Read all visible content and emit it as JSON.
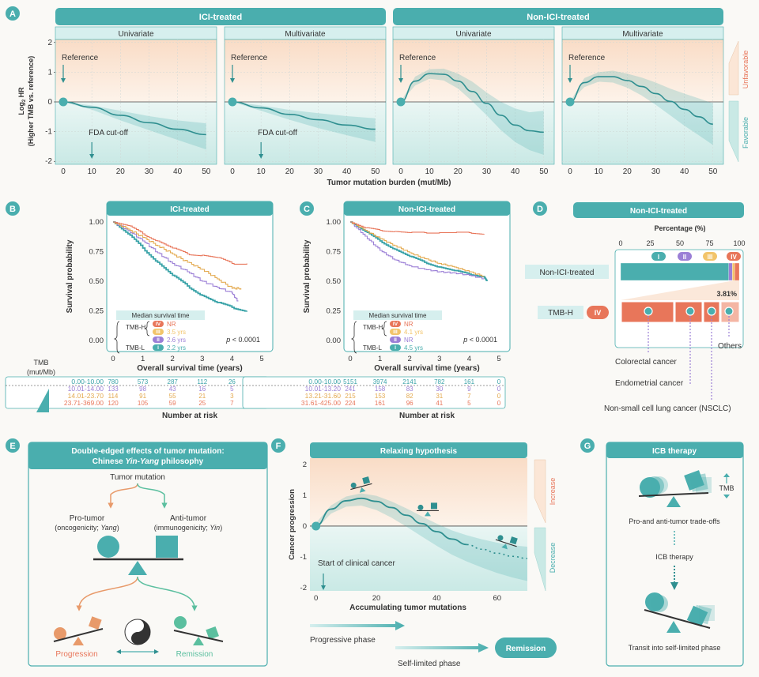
{
  "colors": {
    "teal": "#4aaeae",
    "teal_dark": "#2f8f90",
    "teal_light": "#bfe5e3",
    "header_bg": "#d6efee",
    "orange": "#e8765a",
    "orange_bg": "#fbe6d6",
    "yellow": "#f2c46a",
    "purple": "#9b7fd6",
    "bg": "#faf9f6"
  },
  "panels": {
    "a": "A",
    "b": "B",
    "c": "C",
    "d": "D",
    "e": "E",
    "f": "F",
    "g": "G"
  },
  "panel_a": {
    "group_ici": "ICI-treated",
    "group_non_ici": "Non-ICI-treated",
    "subtitles": [
      "Univariate",
      "Multivariate",
      "Univariate",
      "Multivariate"
    ],
    "ylabel_line1": "Log",
    "ylabel_sub": "2",
    "ylabel_line2": " HR",
    "ylabel_line3": "(Higher TMB vs. reference)",
    "xlabel": "Tumor mutation burden (mut/Mb)",
    "reference_label": "Reference",
    "fda_label": "FDA cut-off",
    "unfavorable": "Unfavorable",
    "favorable": "Favorable",
    "yticks": [
      "2",
      "1",
      "0",
      "-1",
      "-2"
    ],
    "xticks": [
      "0",
      "10",
      "20",
      "30",
      "40",
      "50"
    ]
  },
  "chart_data": [
    {
      "type": "line",
      "title": "ICI-treated, Univariate",
      "xlabel": "Tumor mutation burden (mut/Mb)",
      "ylabel": "Log2 HR (Higher TMB vs. reference)",
      "xlim": [
        0,
        52
      ],
      "ylim": [
        -2.1,
        2.1
      ],
      "x": [
        0,
        10,
        20,
        30,
        40,
        50
      ],
      "y": [
        0,
        -0.18,
        -0.45,
        -0.7,
        -0.92,
        -1.1
      ],
      "ci_low": [
        0,
        -0.26,
        -0.62,
        -0.95,
        -1.28,
        -1.6
      ],
      "ci_high": [
        0,
        -0.12,
        -0.3,
        -0.48,
        -0.62,
        -0.72
      ]
    },
    {
      "type": "line",
      "title": "ICI-treated, Multivariate",
      "xlim": [
        0,
        52
      ],
      "ylim": [
        -2.1,
        2.1
      ],
      "x": [
        0,
        10,
        20,
        30,
        40,
        50
      ],
      "y": [
        0,
        -0.2,
        -0.42,
        -0.6,
        -0.78,
        -0.92
      ],
      "ci_low": [
        0,
        -0.3,
        -0.6,
        -0.88,
        -1.12,
        -1.35
      ],
      "ci_high": [
        0,
        -0.12,
        -0.27,
        -0.38,
        -0.48,
        -0.55
      ]
    },
    {
      "type": "line",
      "title": "Non-ICI-treated, Univariate",
      "xlim": [
        0,
        52
      ],
      "ylim": [
        -2.1,
        2.1
      ],
      "x": [
        0,
        5,
        10,
        15,
        20,
        25,
        30,
        35,
        40,
        45,
        50
      ],
      "y": [
        0,
        0.7,
        0.95,
        0.93,
        0.7,
        0.35,
        -0.05,
        -0.45,
        -0.78,
        -0.97,
        -1.02
      ],
      "ci_low": [
        0,
        0.55,
        0.78,
        0.72,
        0.45,
        0.02,
        -0.45,
        -0.95,
        -1.35,
        -1.62,
        -1.78
      ],
      "ci_high": [
        0,
        0.85,
        1.1,
        1.12,
        0.95,
        0.68,
        0.32,
        0.0,
        -0.22,
        -0.35,
        -0.3
      ]
    },
    {
      "type": "line",
      "title": "Non-ICI-treated, Multivariate",
      "xlim": [
        0,
        52
      ],
      "ylim": [
        -2.1,
        2.1
      ],
      "x": [
        0,
        5,
        10,
        15,
        20,
        25,
        30,
        35,
        40,
        45,
        50
      ],
      "y": [
        0,
        0.65,
        0.85,
        0.85,
        0.72,
        0.52,
        0.28,
        0.02,
        -0.25,
        -0.5,
        -0.75
      ],
      "ci_low": [
        0,
        0.5,
        0.68,
        0.65,
        0.48,
        0.22,
        -0.1,
        -0.45,
        -0.8,
        -1.12,
        -1.45
      ],
      "ci_high": [
        0,
        0.8,
        1.0,
        1.05,
        0.95,
        0.82,
        0.65,
        0.45,
        0.28,
        0.12,
        -0.05
      ]
    },
    {
      "type": "line",
      "title": "ICI-treated",
      "xlabel": "Overall survival time (years)",
      "ylabel": "Survival probability",
      "xlim": [
        0,
        5
      ],
      "ylim": [
        0,
        1
      ],
      "series": [
        {
          "name": "0.00-10.00",
          "x": [
            0,
            0.5,
            1,
            1.5,
            2,
            2.5,
            3,
            3.5,
            4,
            4.5
          ],
          "y": [
            1,
            0.9,
            0.78,
            0.66,
            0.55,
            0.46,
            0.38,
            0.32,
            0.28,
            0.25
          ]
        },
        {
          "name": "10.01-14.00",
          "x": [
            0,
            0.5,
            1,
            1.5,
            2,
            2.5,
            3,
            3.5,
            4,
            4.2
          ],
          "y": [
            1,
            0.93,
            0.84,
            0.74,
            0.65,
            0.58,
            0.5,
            0.45,
            0.4,
            0.33
          ]
        },
        {
          "name": "14.01-23.70",
          "x": [
            0,
            0.5,
            1,
            1.5,
            2,
            2.5,
            3,
            3.5,
            4,
            4.3
          ],
          "y": [
            1,
            0.94,
            0.87,
            0.8,
            0.73,
            0.66,
            0.6,
            0.52,
            0.44,
            0.44
          ]
        },
        {
          "name": "23.71-369.00",
          "x": [
            0,
            0.5,
            1,
            1.5,
            2,
            2.5,
            3,
            3.5,
            4,
            4.5
          ],
          "y": [
            1,
            0.97,
            0.9,
            0.84,
            0.78,
            0.73,
            0.72,
            0.7,
            0.65,
            0.65
          ]
        }
      ]
    },
    {
      "type": "line",
      "title": "Non-ICI-treated",
      "xlabel": "Overall survival time (years)",
      "ylabel": "Survival probability",
      "xlim": [
        0,
        5
      ],
      "ylim": [
        0,
        1
      ],
      "series": [
        {
          "name": "0.00-10.00",
          "x": [
            0,
            0.5,
            1,
            1.5,
            2,
            2.5,
            3,
            3.5,
            4,
            4.5,
            4.6
          ],
          "y": [
            1,
            0.92,
            0.84,
            0.77,
            0.71,
            0.66,
            0.62,
            0.59,
            0.56,
            0.54,
            0.5
          ]
        },
        {
          "name": "10.01-13.20",
          "x": [
            0,
            0.5,
            1,
            1.5,
            2,
            2.5,
            3,
            3.5,
            4,
            4.5
          ],
          "y": [
            1,
            0.88,
            0.76,
            0.68,
            0.63,
            0.6,
            0.58,
            0.57,
            0.55,
            0.52
          ]
        },
        {
          "name": "13.21-31.60",
          "x": [
            0,
            0.5,
            1,
            1.5,
            2,
            2.5,
            3,
            3.5,
            4,
            4.5
          ],
          "y": [
            1,
            0.93,
            0.86,
            0.8,
            0.74,
            0.69,
            0.65,
            0.62,
            0.58,
            0.54
          ]
        },
        {
          "name": "31.61-425.00",
          "x": [
            0,
            0.5,
            1,
            1.5,
            2,
            2.5,
            3,
            3.5,
            4,
            4.5
          ],
          "y": [
            1,
            0.95,
            0.93,
            0.92,
            0.91,
            0.91,
            0.91,
            0.91,
            0.91,
            0.9
          ]
        }
      ]
    },
    {
      "type": "bar",
      "title": "Non-ICI-treated",
      "xlabel": "Percentage (%)",
      "categories": [
        "I",
        "II",
        "III",
        "IV"
      ],
      "values": [
        91.1,
        3.1,
        2.0,
        3.81
      ],
      "annotation": "3.81%"
    },
    {
      "type": "line",
      "title": "Relaxing hypothesis",
      "xlabel": "Accumulating tumor mutations",
      "ylabel": "Cancer progression",
      "xlim": [
        -2,
        70
      ],
      "ylim": [
        -2.1,
        2.2
      ],
      "x": [
        0,
        5,
        10,
        15,
        20,
        25,
        30,
        35,
        40,
        45,
        50,
        55,
        60,
        65,
        70
      ],
      "y": [
        0,
        0.55,
        0.82,
        0.9,
        0.8,
        0.6,
        0.35,
        0.08,
        -0.18,
        -0.42,
        -0.6,
        -0.75,
        -0.88,
        -0.98,
        -1.05
      ]
    }
  ],
  "panel_b": {
    "title": "ICI-treated",
    "ylabel": "Survival probability",
    "xlabel": "Overall survival time (years)",
    "yticks": [
      "1.00",
      "0.75",
      "0.50",
      "0.25",
      "0.00"
    ],
    "xticks": [
      "0",
      "1",
      "2",
      "3",
      "4",
      "5"
    ],
    "median_title": "Median survival time",
    "tmbh": "TMB-H",
    "tmbl": "TMB-L",
    "medians": [
      {
        "stage": "IV",
        "value": "NR"
      },
      {
        "stage": "III",
        "value": "3.5 yrs"
      },
      {
        "stage": "II",
        "value": "2.6 yrs"
      },
      {
        "stage": "I",
        "value": "2.2 yrs"
      }
    ],
    "pvalue_prefix": "p",
    "pvalue": " < 0.0001",
    "risk_title": "Number at risk",
    "risk_rows": [
      {
        "label": "0.00-10.00",
        "values": [
          "780",
          "573",
          "287",
          "112",
          "26",
          "0"
        ]
      },
      {
        "label": "10.01-14.00",
        "values": [
          "133",
          "98",
          "43",
          "16",
          "5",
          "0"
        ]
      },
      {
        "label": "14.01-23.70",
        "values": [
          "114",
          "91",
          "55",
          "21",
          "3",
          "0"
        ]
      },
      {
        "label": "23.71-369.00",
        "values": [
          "120",
          "105",
          "59",
          "25",
          "7",
          "0"
        ]
      }
    ]
  },
  "panel_c": {
    "title": "Non-ICI-treated",
    "ylabel": "Survival probability",
    "xlabel": "Overall survival time (years)",
    "yticks": [
      "1.00",
      "0.75",
      "0.50",
      "0.25",
      "0.00"
    ],
    "xticks": [
      "0",
      "1",
      "2",
      "3",
      "4",
      "5"
    ],
    "median_title": "Median survival time",
    "tmbh": "TMB-H",
    "tmbl": "TMB-L",
    "medians": [
      {
        "stage": "IV",
        "value": "NR"
      },
      {
        "stage": "III",
        "value": "4.1 yrs"
      },
      {
        "stage": "II",
        "value": "NR"
      },
      {
        "stage": "I",
        "value": "4.5 yrs"
      }
    ],
    "pvalue_prefix": "p",
    "pvalue": " < 0.0001",
    "risk_title": "Number at risk",
    "risk_rows": [
      {
        "label": "0.00-10.00",
        "values": [
          "5151",
          "3974",
          "2141",
          "782",
          "161",
          "0"
        ]
      },
      {
        "label": "10.01-13.20",
        "values": [
          "241",
          "158",
          "83",
          "30",
          "9",
          "0"
        ]
      },
      {
        "label": "13.21-31.60",
        "values": [
          "215",
          "153",
          "82",
          "31",
          "7",
          "0"
        ]
      },
      {
        "label": "31.61-425.00",
        "values": [
          "224",
          "161",
          "96",
          "41",
          "5",
          "0"
        ]
      }
    ]
  },
  "tmb_legend": {
    "line1": "TMB",
    "line2": "(mut/Mb)"
  },
  "panel_d": {
    "title": "Non-ICI-treated",
    "xlabel": "Percentage (%)",
    "xticks": [
      "0",
      "25",
      "50",
      "75",
      "100"
    ],
    "stages": [
      "I",
      "II",
      "III",
      "IV"
    ],
    "row1_label": "Non-ICI-treated",
    "row2_label": "TMB-H",
    "row2_stage": "IV",
    "pct": "3.81%",
    "others": "Others",
    "cancers": [
      "Colorectal cancer",
      "Endometrial cancer",
      "Non-small cell lung cancer (NSCLC)"
    ]
  },
  "panel_e": {
    "title_line1": "Double-edged effects of tumor mutation:",
    "title_line2_a": "Chinese ",
    "title_line2_b": "Yin-Yang",
    "title_line2_c": " philosophy",
    "tumor_mutation": "Tumor mutation",
    "pro_tumor": "Pro-tumor",
    "pro_sub_a": "(oncogenicity; ",
    "pro_sub_b": "Yang",
    "pro_sub_c": ")",
    "anti_tumor": "Anti-tumor",
    "anti_sub_a": "(immunogenicity; ",
    "anti_sub_b": "Yin",
    "anti_sub_c": ")",
    "progression": "Progression",
    "remission": "Remission"
  },
  "panel_f": {
    "title": "Relaxing hypothesis",
    "ylabel": "Cancer progression",
    "xlabel": "Accumulating tumor mutations",
    "yticks": [
      "2",
      "1",
      "0",
      "-1",
      "-2"
    ],
    "xticks": [
      "0",
      "20",
      "40",
      "60"
    ],
    "start_label": "Start of clinical cancer",
    "increase": "Increase",
    "decrease": "Decrease",
    "progressive_phase": "Progressive phase",
    "self_limited_phase": "Self-limited phase",
    "remission": "Remission"
  },
  "panel_g": {
    "title": "ICB therapy",
    "tmb": "TMB",
    "tradeoffs": "Pro-and anti-tumor trade-offs",
    "icb_therapy": "ICB therapy",
    "transit": "Transit into self-limited phase"
  }
}
